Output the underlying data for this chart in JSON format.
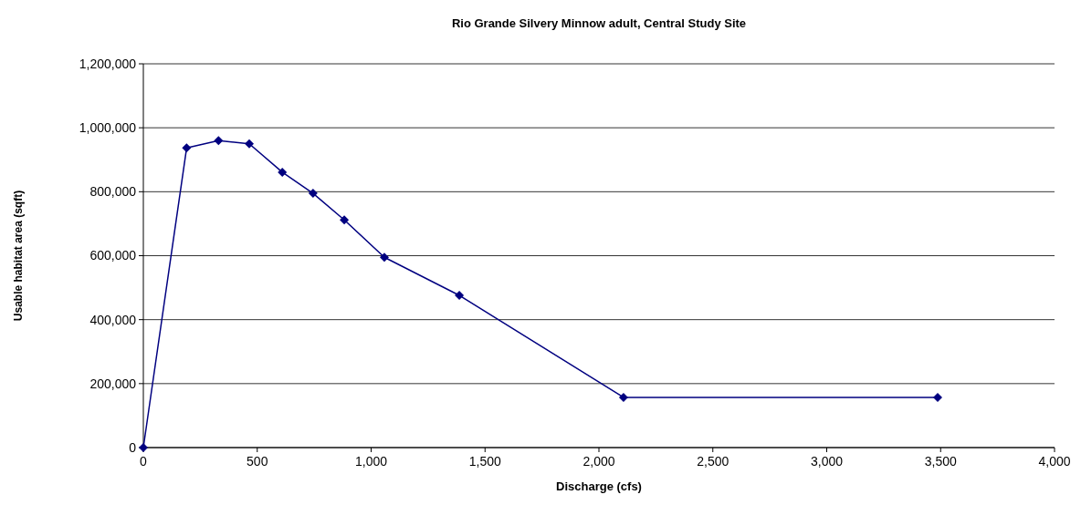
{
  "chart_data": {
    "type": "line",
    "title": "Rio Grande Silvery Minnow adult, Central Study Site",
    "xlabel": "Discharge (cfs)",
    "ylabel": "Usable habitat area (sqft)",
    "x": [
      0,
      190,
      330,
      465,
      610,
      745,
      882,
      1058,
      1387,
      2108,
      3487
    ],
    "series": [
      {
        "color": "#000080",
        "values": [
          0,
          937000,
          960000,
          950000,
          861000,
          795000,
          712000,
          595000,
          476000,
          157000,
          157000
        ]
      }
    ],
    "xlim": [
      0,
      4000
    ],
    "xticks": [
      {
        "value": 0,
        "label": "0"
      },
      {
        "value": 500,
        "label": "500"
      },
      {
        "value": 1000,
        "label": "1,000"
      },
      {
        "value": 1500,
        "label": "1,500"
      },
      {
        "value": 2000,
        "label": "2,000"
      },
      {
        "value": 2500,
        "label": "2,500"
      },
      {
        "value": 3000,
        "label": "3,000"
      },
      {
        "value": 3500,
        "label": "3,500"
      },
      {
        "value": 4000,
        "label": "4,000"
      }
    ],
    "ylim": [
      0,
      1200000
    ],
    "yticks": [
      {
        "value": 0,
        "label": "0"
      },
      {
        "value": 200000,
        "label": "200,000"
      },
      {
        "value": 400000,
        "label": "400,000"
      },
      {
        "value": 600000,
        "label": "600,000"
      },
      {
        "value": 800000,
        "label": "800,000"
      },
      {
        "value": 1000000,
        "label": "1,000,000"
      },
      {
        "value": 1200000,
        "label": "1,200,000"
      }
    ],
    "grid": "y",
    "marker": "diamond",
    "line_style": "solid"
  }
}
